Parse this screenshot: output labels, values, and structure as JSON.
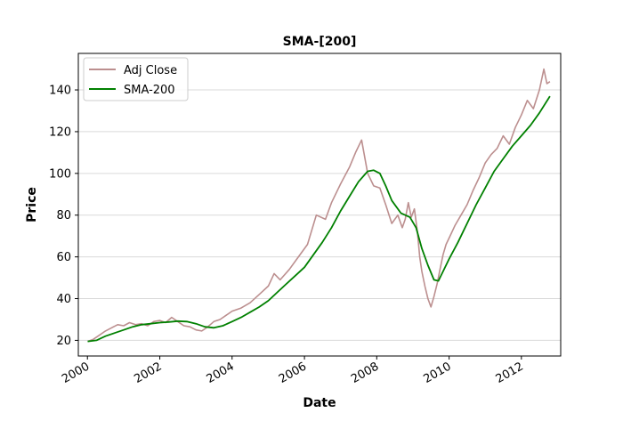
{
  "chart_data": {
    "type": "line",
    "title": "SMA-[200]",
    "xlabel": "Date",
    "ylabel": "Price",
    "xlim": [
      "1999-10-01",
      "2013-02-01"
    ],
    "ylim": [
      12.5,
      157.5
    ],
    "xticks": [
      {
        "label": "2000",
        "date": "2000-01-01"
      },
      {
        "label": "2002",
        "date": "2002-01-01"
      },
      {
        "label": "2004",
        "date": "2004-01-01"
      },
      {
        "label": "2006",
        "date": "2006-01-01"
      },
      {
        "label": "2008",
        "date": "2008-01-01"
      },
      {
        "label": "2010",
        "date": "2010-01-01"
      },
      {
        "label": "2012",
        "date": "2012-01-01"
      }
    ],
    "yticks": [
      20,
      40,
      60,
      80,
      100,
      120,
      140
    ],
    "grid": {
      "y": true,
      "x": false
    },
    "legend_position": "top-left",
    "series": [
      {
        "name": "Adj Close",
        "color": "#bc8f8f",
        "points": [
          [
            "2000-01-03",
            19.5
          ],
          [
            "2000-03-01",
            20.5
          ],
          [
            "2000-05-01",
            22.5
          ],
          [
            "2000-07-01",
            24.5
          ],
          [
            "2000-09-01",
            26
          ],
          [
            "2000-11-01",
            27.5
          ],
          [
            "2001-01-01",
            27
          ],
          [
            "2001-03-01",
            28.5
          ],
          [
            "2001-05-01",
            27.5
          ],
          [
            "2001-07-01",
            28
          ],
          [
            "2001-09-01",
            27
          ],
          [
            "2001-11-01",
            29
          ],
          [
            "2002-01-01",
            29.5
          ],
          [
            "2002-03-01",
            28.5
          ],
          [
            "2002-05-01",
            31
          ],
          [
            "2002-07-01",
            29
          ],
          [
            "2002-09-01",
            27
          ],
          [
            "2002-11-01",
            26.5
          ],
          [
            "2003-01-01",
            25
          ],
          [
            "2003-03-01",
            24.5
          ],
          [
            "2003-05-01",
            26.5
          ],
          [
            "2003-07-01",
            29
          ],
          [
            "2003-09-01",
            30
          ],
          [
            "2003-11-01",
            32
          ],
          [
            "2004-01-01",
            34
          ],
          [
            "2004-04-01",
            35.5
          ],
          [
            "2004-07-01",
            38
          ],
          [
            "2004-10-01",
            42
          ],
          [
            "2005-01-01",
            46
          ],
          [
            "2005-03-01",
            52
          ],
          [
            "2005-05-01",
            49
          ],
          [
            "2005-08-01",
            54
          ],
          [
            "2005-11-01",
            60
          ],
          [
            "2006-02-01",
            66
          ],
          [
            "2006-05-01",
            80
          ],
          [
            "2006-08-01",
            78
          ],
          [
            "2006-10-01",
            86
          ],
          [
            "2007-01-01",
            95
          ],
          [
            "2007-04-01",
            103
          ],
          [
            "2007-06-01",
            110
          ],
          [
            "2007-08-01",
            116
          ],
          [
            "2007-10-01",
            100
          ],
          [
            "2007-12-01",
            94
          ],
          [
            "2008-02-01",
            93
          ],
          [
            "2008-04-01",
            85
          ],
          [
            "2008-06-01",
            76
          ],
          [
            "2008-08-01",
            80
          ],
          [
            "2008-09-15",
            74
          ],
          [
            "2008-10-15",
            78
          ],
          [
            "2008-11-15",
            86
          ],
          [
            "2008-12-15",
            79
          ],
          [
            "2009-01-15",
            83
          ],
          [
            "2009-02-15",
            72
          ],
          [
            "2009-03-10",
            60
          ],
          [
            "2009-04-01",
            53
          ],
          [
            "2009-05-01",
            46
          ],
          [
            "2009-06-01",
            40
          ],
          [
            "2009-07-01",
            36
          ],
          [
            "2009-08-01",
            41
          ],
          [
            "2009-09-01",
            47
          ],
          [
            "2009-10-01",
            54
          ],
          [
            "2009-11-01",
            61
          ],
          [
            "2009-12-01",
            66
          ],
          [
            "2010-01-01",
            69
          ],
          [
            "2010-03-01",
            75
          ],
          [
            "2010-05-01",
            80
          ],
          [
            "2010-07-01",
            85
          ],
          [
            "2010-09-01",
            92
          ],
          [
            "2010-11-01",
            98
          ],
          [
            "2011-01-01",
            105
          ],
          [
            "2011-03-01",
            109
          ],
          [
            "2011-05-01",
            112
          ],
          [
            "2011-07-01",
            118
          ],
          [
            "2011-09-01",
            114
          ],
          [
            "2011-11-01",
            122
          ],
          [
            "2012-01-01",
            128
          ],
          [
            "2012-03-01",
            135
          ],
          [
            "2012-05-01",
            131
          ],
          [
            "2012-07-01",
            140
          ],
          [
            "2012-08-15",
            150
          ],
          [
            "2012-09-15",
            143
          ],
          [
            "2012-10-15",
            144
          ]
        ]
      },
      {
        "name": "SMA-200",
        "color": "#008000",
        "points": [
          [
            "2000-01-03",
            19.5
          ],
          [
            "2000-04-01",
            20
          ],
          [
            "2000-07-01",
            22
          ],
          [
            "2000-10-01",
            23.5
          ],
          [
            "2001-01-01",
            25
          ],
          [
            "2001-04-01",
            26.5
          ],
          [
            "2001-07-01",
            27.5
          ],
          [
            "2001-10-01",
            28
          ],
          [
            "2002-01-01",
            28.5
          ],
          [
            "2002-04-01",
            28.8
          ],
          [
            "2002-07-01",
            29.2
          ],
          [
            "2002-10-01",
            29
          ],
          [
            "2003-01-01",
            28
          ],
          [
            "2003-04-01",
            26.5
          ],
          [
            "2003-07-01",
            26
          ],
          [
            "2003-10-01",
            27
          ],
          [
            "2004-01-01",
            29
          ],
          [
            "2004-04-01",
            31
          ],
          [
            "2004-07-01",
            33.5
          ],
          [
            "2004-10-01",
            36
          ],
          [
            "2005-01-01",
            39
          ],
          [
            "2005-04-01",
            43
          ],
          [
            "2005-07-01",
            47
          ],
          [
            "2005-10-01",
            51
          ],
          [
            "2006-01-01",
            55
          ],
          [
            "2006-04-01",
            61
          ],
          [
            "2006-07-01",
            67
          ],
          [
            "2006-10-01",
            74
          ],
          [
            "2007-01-01",
            82
          ],
          [
            "2007-04-01",
            89
          ],
          [
            "2007-07-01",
            96
          ],
          [
            "2007-10-01",
            101
          ],
          [
            "2007-12-01",
            101.5
          ],
          [
            "2008-02-01",
            100
          ],
          [
            "2008-04-01",
            94
          ],
          [
            "2008-06-01",
            87
          ],
          [
            "2008-09-01",
            81
          ],
          [
            "2008-12-01",
            79
          ],
          [
            "2009-02-01",
            74
          ],
          [
            "2009-04-01",
            64
          ],
          [
            "2009-06-01",
            56
          ],
          [
            "2009-08-01",
            49
          ],
          [
            "2009-09-15",
            48.5
          ],
          [
            "2009-11-01",
            53
          ],
          [
            "2010-01-01",
            59
          ],
          [
            "2010-04-01",
            67
          ],
          [
            "2010-07-01",
            76
          ],
          [
            "2010-10-01",
            85
          ],
          [
            "2011-01-01",
            93
          ],
          [
            "2011-04-01",
            101
          ],
          [
            "2011-07-01",
            107
          ],
          [
            "2011-10-01",
            113
          ],
          [
            "2012-01-01",
            118
          ],
          [
            "2012-04-01",
            123
          ],
          [
            "2012-07-01",
            129
          ],
          [
            "2012-10-15",
            137
          ]
        ]
      }
    ]
  }
}
